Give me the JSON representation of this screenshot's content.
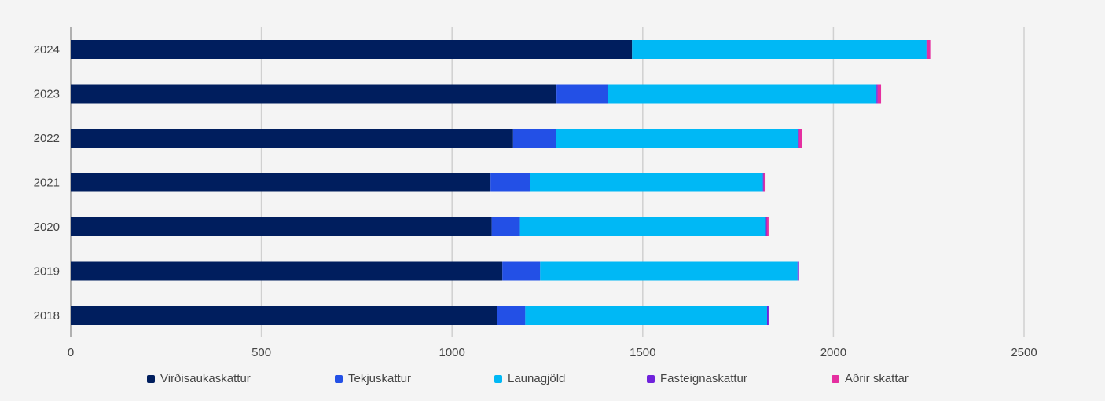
{
  "chart_data": {
    "type": "bar",
    "orientation": "horizontal",
    "stacked": true,
    "categories": [
      "2024",
      "2023",
      "2022",
      "2021",
      "2020",
      "2019",
      "2018"
    ],
    "series": [
      {
        "name": "Virðisaukaskattur",
        "color": "#001e5e",
        "values": [
          1472,
          1274,
          1160,
          1101,
          1104,
          1132,
          1118
        ]
      },
      {
        "name": "Tekjuskattur",
        "color": "#2350e6",
        "values": [
          0,
          134,
          112,
          104,
          74,
          99,
          74
        ]
      },
      {
        "name": "Launagjöld",
        "color": "#00b8f5",
        "values": [
          772,
          705,
          635,
          610,
          645,
          675,
          634
        ]
      },
      {
        "name": "Fasteignaskattur",
        "color": "#7022dc",
        "values": [
          2,
          3,
          3,
          2,
          2,
          4,
          4
        ]
      },
      {
        "name": "Aðrir skattar",
        "color": "#e52fa0",
        "values": [
          8,
          9,
          7,
          5,
          5,
          0,
          0
        ]
      }
    ],
    "x_ticks": [
      "0",
      "500",
      "1000",
      "1500",
      "2000",
      "2500"
    ],
    "xlim": [
      0,
      2500
    ],
    "grid": true,
    "legend_position": "bottom"
  }
}
